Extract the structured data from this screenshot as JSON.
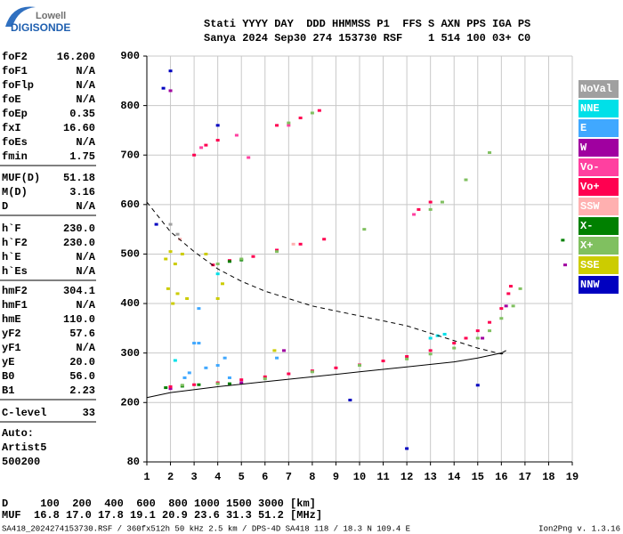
{
  "logo": {
    "top": "Lowell",
    "bottom": "DIGISONDE"
  },
  "header": {
    "line1": "Stati YYYY DAY  DDD HHMMSS P1  FFS S AXN PPS IGA PS",
    "line2": "Sanya 2024 Sep30 274 153730 RSF    1 514 100 03+ C0"
  },
  "parameters": [
    [
      {
        "name": "foF2",
        "value": "16.200"
      },
      {
        "name": "foF1",
        "value": "N/A"
      },
      {
        "name": "foFlp",
        "value": "N/A"
      },
      {
        "name": "foE",
        "value": "N/A"
      },
      {
        "name": "foEp",
        "value": "0.35"
      },
      {
        "name": "fxI",
        "value": "16.60"
      },
      {
        "name": "foEs",
        "value": "N/A"
      },
      {
        "name": "fmin",
        "value": "1.75"
      }
    ],
    [
      {
        "name": "MUF(D)",
        "value": "51.18"
      },
      {
        "name": "M(D)",
        "value": "3.16"
      },
      {
        "name": "D",
        "value": "N/A"
      }
    ],
    [
      {
        "name": "h`F",
        "value": "230.0"
      },
      {
        "name": "h`F2",
        "value": "230.0"
      },
      {
        "name": "h`E",
        "value": "N/A"
      },
      {
        "name": "h`Es",
        "value": "N/A"
      }
    ],
    [
      {
        "name": "hmF2",
        "value": "304.1"
      },
      {
        "name": "hmF1",
        "value": "N/A"
      },
      {
        "name": "hmE",
        "value": "110.0"
      },
      {
        "name": "yF2",
        "value": "57.6"
      },
      {
        "name": "yF1",
        "value": "N/A"
      },
      {
        "name": "yE",
        "value": "20.0"
      },
      {
        "name": "B0",
        "value": "56.0"
      },
      {
        "name": "B1",
        "value": "2.23"
      }
    ],
    [
      {
        "name": "C-level",
        "value": "33"
      }
    ]
  ],
  "autoscaling": [
    "Auto:",
    "Artist5",
    "500200"
  ],
  "muf_table": {
    "line1": "D     100  200  400  600  800 1000 1500 3000 [km]",
    "line2": "MUF  16.8 17.0 17.8 19.1 20.9 23.6 31.3 51.2 [MHz]"
  },
  "footer": {
    "left": "SA418_2024274153730.RSF / 360fx512h 50 kHz 2.5 km / DPS-4D SA418 118 / 18.3 N 109.4 E",
    "right": "Ion2Png v. 1.3.16"
  },
  "chart_data": {
    "type": "scatter",
    "xlim": [
      1,
      19
    ],
    "xticks": [
      1,
      2,
      3,
      4,
      5,
      6,
      7,
      8,
      9,
      10,
      11,
      12,
      13,
      14,
      15,
      16,
      17,
      18,
      19
    ],
    "ylim": [
      80,
      900
    ],
    "yticks": [
      80,
      200,
      300,
      400,
      500,
      600,
      700,
      800,
      900
    ],
    "grid": true,
    "legend": "right",
    "series": [
      {
        "name": "NoVal",
        "color": "#a0a0a0",
        "x": [
          2.0,
          2.3
        ],
        "y": [
          560,
          540
        ]
      },
      {
        "name": "NNE",
        "color": "#00e0e8",
        "x": [
          13.0,
          13.3,
          13.6,
          2.2,
          4.0
        ],
        "y": [
          330,
          335,
          338,
          285,
          460
        ]
      },
      {
        "name": "E",
        "color": "#40a8ff",
        "x": [
          2.8,
          3.0,
          3.2,
          3.5,
          4.0,
          4.3,
          4.5,
          6.5,
          3.2,
          2.6
        ],
        "y": [
          260,
          320,
          390,
          270,
          275,
          290,
          250,
          290,
          320,
          250
        ]
      },
      {
        "name": "W",
        "color": "#a000a0",
        "x": [
          2.0,
          5.0,
          6.8,
          15.2,
          16.2,
          18.7,
          2.0
        ],
        "y": [
          228,
          240,
          305,
          330,
          395,
          478,
          830
        ]
      },
      {
        "name": "Vo-",
        "color": "#ff40a0",
        "x": [
          3.3,
          4.8,
          5.3,
          12.3,
          7.0
        ],
        "y": [
          715,
          740,
          695,
          580,
          760
        ]
      },
      {
        "name": "Vo+",
        "color": "#ff0050",
        "x": [
          2.0,
          3.0,
          4.0,
          5.0,
          6.0,
          7.0,
          8.0,
          9.0,
          10.0,
          11.0,
          12.0,
          13.0,
          14.0,
          14.5,
          15.0,
          15.5,
          16.0,
          16.3,
          16.4,
          3.8,
          4.5,
          5.5,
          6.5,
          7.5,
          8.5,
          6.5,
          7.5,
          8.3,
          3.0,
          3.5,
          4.0,
          12.5,
          13.0
        ],
        "y": [
          232,
          236,
          240,
          246,
          252,
          258,
          264,
          270,
          276,
          284,
          293,
          305,
          320,
          330,
          345,
          362,
          390,
          420,
          435,
          478,
          487,
          495,
          508,
          520,
          530,
          760,
          775,
          790,
          700,
          720,
          730,
          590,
          605
        ]
      },
      {
        "name": "SSW",
        "color": "#ffb0b0",
        "x": [
          2.4,
          7.2
        ],
        "y": [
          530,
          520
        ]
      },
      {
        "name": "X-",
        "color": "#008000",
        "x": [
          1.8,
          2.5,
          3.2,
          4.5,
          4.5,
          5.0,
          18.6
        ],
        "y": [
          230,
          233,
          236,
          238,
          485,
          488,
          528
        ]
      },
      {
        "name": "X+",
        "color": "#80c060",
        "x": [
          2.5,
          4.0,
          6.0,
          8.0,
          10.0,
          12.0,
          13.0,
          14.0,
          15.0,
          15.5,
          16.0,
          16.5,
          16.8,
          4.0,
          5.0,
          6.5,
          13.0,
          13.5,
          10.2,
          15.5,
          7.0,
          8.0,
          14.5
        ],
        "y": [
          235,
          238,
          248,
          262,
          275,
          288,
          298,
          310,
          330,
          345,
          370,
          395,
          430,
          480,
          490,
          505,
          590,
          605,
          550,
          705,
          765,
          785,
          650
        ]
      },
      {
        "name": "SSE",
        "color": "#cccc00",
        "x": [
          1.8,
          2.0,
          2.2,
          2.5,
          1.9,
          2.3,
          2.7,
          2.1,
          4.2,
          4.0,
          3.5,
          6.4
        ],
        "y": [
          490,
          505,
          480,
          500,
          430,
          420,
          410,
          400,
          440,
          410,
          500,
          305
        ]
      },
      {
        "name": "NNW",
        "color": "#0000c0",
        "x": [
          2.0,
          1.7,
          9.6,
          12.0,
          15.0,
          1.4,
          4.0
        ],
        "y": [
          870,
          835,
          205,
          107,
          235,
          560,
          760
        ]
      }
    ],
    "lines": [
      {
        "style": "dashed",
        "color": "#000000",
        "x": [
          1,
          1.5,
          2,
          3,
          4,
          5,
          6,
          7,
          8,
          9,
          10,
          11,
          12,
          13,
          14,
          15,
          16,
          16.2
        ],
        "y": [
          605,
          575,
          545,
          505,
          470,
          445,
          425,
          410,
          395,
          385,
          375,
          365,
          355,
          340,
          325,
          310,
          298,
          300
        ]
      },
      {
        "style": "solid",
        "color": "#000000",
        "x": [
          1,
          2,
          4,
          6,
          8,
          10,
          12,
          14,
          15,
          16,
          16.2
        ],
        "y": [
          210,
          220,
          232,
          242,
          252,
          262,
          272,
          282,
          290,
          300,
          305
        ]
      }
    ]
  }
}
